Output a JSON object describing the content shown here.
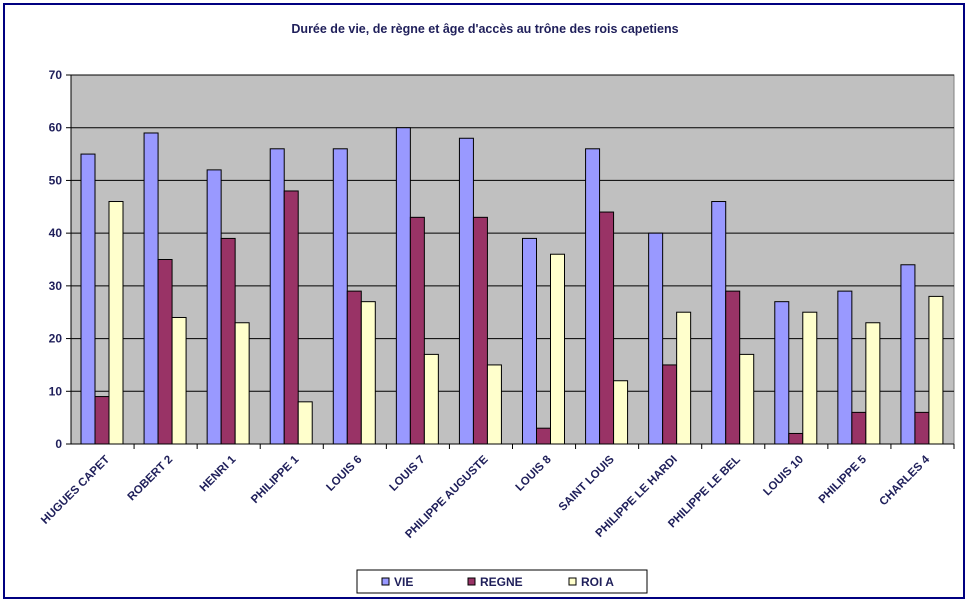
{
  "chart_data": {
    "type": "bar",
    "title": "Durée de vie, de règne et âge d'accès au trône des rois capetiens",
    "categories": [
      "HUGUES CAPET",
      "ROBERT 2",
      "HENRI 1",
      "PHILIPPE 1",
      "LOUIS 6",
      "LOUIS 7",
      "PHILIPPE AUGUSTE",
      "LOUIS 8",
      "SAINT LOUIS",
      "PHILIPPE LE HARDI",
      "PHILIPPE LE BEL",
      "LOUIS 10",
      "PHILIPPE 5",
      "CHARLES 4"
    ],
    "series": [
      {
        "name": "VIE",
        "color": "#9999ff",
        "values": [
          55,
          59,
          52,
          56,
          56,
          60,
          58,
          39,
          56,
          40,
          46,
          27,
          29,
          34
        ]
      },
      {
        "name": "REGNE",
        "color": "#993366",
        "values": [
          9,
          35,
          39,
          48,
          29,
          43,
          43,
          3,
          44,
          15,
          29,
          2,
          6,
          6
        ]
      },
      {
        "name": "ROI A",
        "color": "#ffffcc",
        "values": [
          46,
          24,
          23,
          8,
          27,
          17,
          15,
          36,
          12,
          25,
          17,
          25,
          23,
          28
        ]
      }
    ],
    "ylim": [
      0,
      70
    ],
    "yticks": [
      0,
      10,
      20,
      30,
      40,
      50,
      60,
      70
    ],
    "grid": true,
    "plot_background": "#c0c0c0",
    "legend_position": "bottom",
    "xlabel": "",
    "ylabel": ""
  }
}
